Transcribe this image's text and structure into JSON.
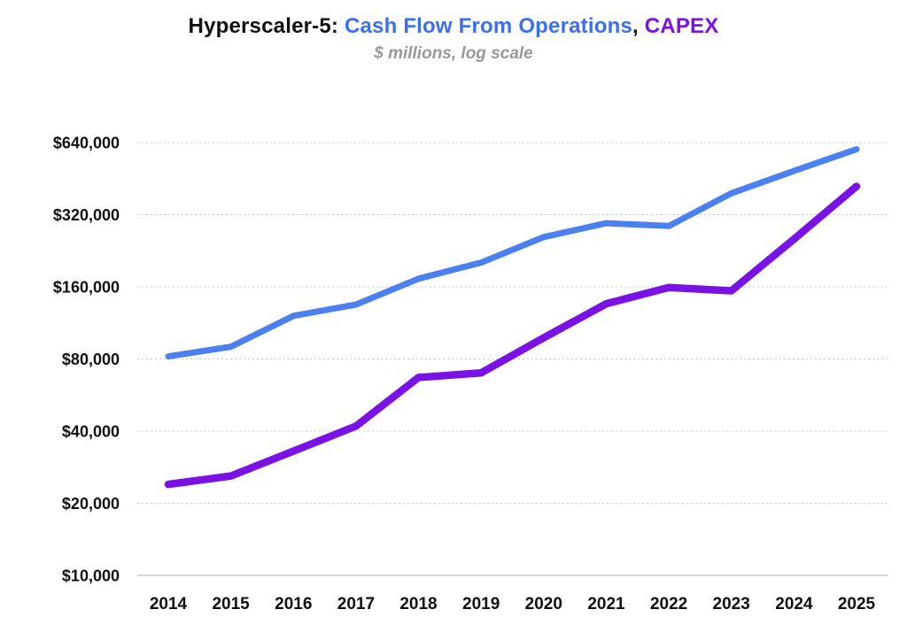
{
  "title": {
    "prefix": "Hyperscaler-5: ",
    "series1": "Cash Flow From Operations",
    "separator": ", ",
    "series2": "CAPEX"
  },
  "subtitle": "$ millions, log scale",
  "colors": {
    "cfo": "#3E6EF0",
    "capex": "#7A12E6",
    "grid": "#C9C9CE",
    "axis_text": "#111111",
    "subtitle_text": "#999999"
  },
  "chart_data": {
    "type": "line",
    "title": "Hyperscaler-5: Cash Flow From Operations, CAPEX",
    "subtitle": "$ millions, log scale",
    "xlabel": "",
    "ylabel": "$ millions",
    "yscale": "log2",
    "ylim": [
      10000,
      640000
    ],
    "grid": "horizontal-dotted",
    "legend": "color-coded-in-title",
    "x": [
      2014,
      2015,
      2016,
      2017,
      2018,
      2019,
      2020,
      2021,
      2022,
      2023,
      2024,
      2025
    ],
    "yticks": [
      10000,
      20000,
      40000,
      80000,
      160000,
      320000,
      640000
    ],
    "ytick_labels": [
      "$10,000",
      "$20,000",
      "$40,000",
      "$80,000",
      "$160,000",
      "$320,000",
      "$640,000"
    ],
    "series": [
      {
        "name": "Cash Flow From Operations",
        "color": "#4A80F0",
        "values": [
          82000,
          90000,
          121000,
          135000,
          173000,
          202000,
          258000,
          295000,
          287000,
          393000,
          487000,
          600000
        ]
      },
      {
        "name": "CAPEX",
        "color": "#7A12E6",
        "values": [
          24000,
          26000,
          33000,
          42000,
          67000,
          70000,
          98000,
          136000,
          159000,
          154000,
          253000,
          420000
        ]
      }
    ]
  }
}
